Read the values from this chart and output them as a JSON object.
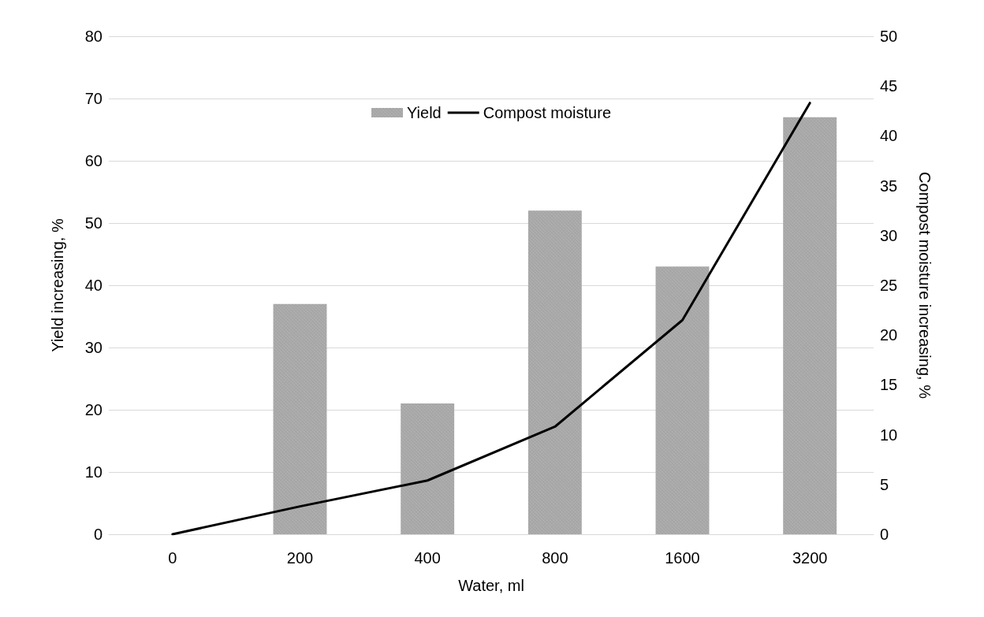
{
  "chart_data": {
    "type": "bar",
    "xlabel": "Water, ml",
    "ylabel": "Yield increasing, %",
    "y2label": "Compost moisture increasing, %",
    "categories": [
      "0",
      "200",
      "400",
      "800",
      "1600",
      "3200"
    ],
    "series": [
      {
        "name": "Yield",
        "color": "#a6a6a6",
        "values": [
          0,
          37,
          21,
          52,
          43,
          67
        ]
      },
      {
        "name": "Compost moisture",
        "type": "line",
        "axis": "y2",
        "color": "#000000",
        "values": [
          0,
          2.8,
          5.4,
          10.8,
          21.5,
          43.3
        ]
      }
    ],
    "ylim": [
      0,
      80
    ],
    "yticks": [
      0,
      10,
      20,
      30,
      40,
      50,
      60,
      70,
      80
    ],
    "y2lim": [
      0,
      50
    ],
    "y2ticks": [
      0,
      5,
      10,
      15,
      20,
      25,
      30,
      35,
      40,
      45,
      50
    ],
    "grid": "y",
    "legend": "top",
    "marker": "none",
    "line_style": "solid"
  }
}
